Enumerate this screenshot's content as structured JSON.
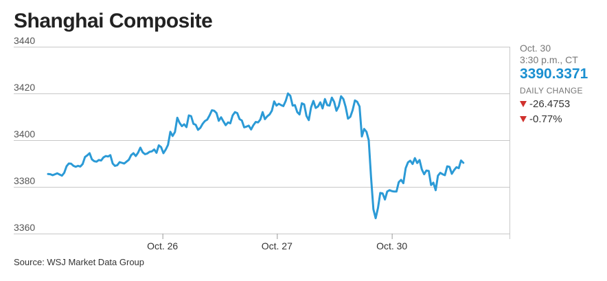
{
  "title": "Shanghai Composite",
  "side": {
    "date": "Oct. 30",
    "time": "3:30 p.m., CT",
    "price": "3390.3371",
    "change_label": "DAILY CHANGE",
    "change_abs": "-26.4753",
    "change_pct": "-0.77%",
    "down_icon": "down-triangle-icon",
    "down_color": "#d0312d"
  },
  "source": "Source: WSJ Market Data Group",
  "chart_data": {
    "type": "line",
    "title": "Shanghai Composite",
    "ylim": [
      3360,
      3440
    ],
    "yticks": [
      3440,
      3420,
      3400,
      3380,
      3360
    ],
    "xlim": [
      0,
      100
    ],
    "xticks": [
      {
        "label": "Oct. 26",
        "x": 24.8
      },
      {
        "label": "Oct. 27",
        "x": 49.6
      },
      {
        "label": "Oct. 30",
        "x": 74.5
      }
    ],
    "grid": true,
    "color": "#2b9ad6",
    "series": [
      {
        "values": [
          [
            0,
            3385.5
          ],
          [
            0.5,
            3385.4
          ],
          [
            1,
            3385.0
          ],
          [
            1.5,
            3385.4
          ],
          [
            2,
            3385.8
          ],
          [
            2.5,
            3385.3
          ],
          [
            3,
            3384.8
          ],
          [
            3.5,
            3386.0
          ],
          [
            4,
            3388.8
          ],
          [
            4.5,
            3390.0
          ],
          [
            5,
            3389.9
          ],
          [
            5.5,
            3389.0
          ],
          [
            6,
            3388.6
          ],
          [
            6.5,
            3389.0
          ],
          [
            7,
            3388.7
          ],
          [
            7.5,
            3389.8
          ],
          [
            8,
            3392.8
          ],
          [
            8.5,
            3393.5
          ],
          [
            9,
            3394.4
          ],
          [
            9.5,
            3391.8
          ],
          [
            10,
            3391.0
          ],
          [
            10.5,
            3390.8
          ],
          [
            11,
            3391.5
          ],
          [
            11.5,
            3391.3
          ],
          [
            12,
            3392.6
          ],
          [
            12.5,
            3393.2
          ],
          [
            13,
            3393.0
          ],
          [
            13.5,
            3393.6
          ],
          [
            14,
            3390.0
          ],
          [
            14.5,
            3389.0
          ],
          [
            15,
            3389.3
          ],
          [
            15.5,
            3390.6
          ],
          [
            16,
            3390.3
          ],
          [
            16.5,
            3390.0
          ],
          [
            17,
            3390.8
          ],
          [
            17.5,
            3391.6
          ],
          [
            18,
            3393.6
          ],
          [
            18.5,
            3394.4
          ],
          [
            19,
            3393.2
          ],
          [
            19.5,
            3394.6
          ],
          [
            20,
            3396.8
          ],
          [
            20.5,
            3394.8
          ],
          [
            21,
            3394.0
          ],
          [
            21.5,
            3394.3
          ],
          [
            22,
            3395.0
          ],
          [
            22.5,
            3395.2
          ],
          [
            23,
            3396.0
          ],
          [
            23.5,
            3394.6
          ],
          [
            24,
            3397.8
          ],
          [
            24.5,
            3397.0
          ],
          [
            25,
            3394.4
          ],
          [
            25.5,
            3396.0
          ],
          [
            26,
            3398.0
          ],
          [
            26.5,
            3403.6
          ],
          [
            27,
            3401.8
          ],
          [
            27.5,
            3403.5
          ],
          [
            28,
            3409.6
          ],
          [
            28.5,
            3407.4
          ],
          [
            29,
            3406.0
          ],
          [
            29.5,
            3406.8
          ],
          [
            30,
            3405.6
          ],
          [
            30.5,
            3410.6
          ],
          [
            31,
            3410.3
          ],
          [
            31.5,
            3407.0
          ],
          [
            32,
            3406.6
          ],
          [
            32.5,
            3404.4
          ],
          [
            33,
            3405.3
          ],
          [
            33.5,
            3407.0
          ],
          [
            34,
            3408.2
          ],
          [
            34.5,
            3408.8
          ],
          [
            35,
            3410.6
          ],
          [
            35.5,
            3412.8
          ],
          [
            36,
            3412.6
          ],
          [
            36.5,
            3411.6
          ],
          [
            37,
            3408.3
          ],
          [
            37.5,
            3409.8
          ],
          [
            38,
            3408.0
          ],
          [
            38.5,
            3406.4
          ],
          [
            39,
            3407.6
          ],
          [
            39.5,
            3407.2
          ],
          [
            40,
            3410.6
          ],
          [
            40.5,
            3412.0
          ],
          [
            41,
            3411.6
          ],
          [
            41.5,
            3409.0
          ],
          [
            42,
            3408.4
          ],
          [
            42.5,
            3405.5
          ],
          [
            43,
            3405.8
          ],
          [
            43.5,
            3406.2
          ],
          [
            44,
            3404.6
          ],
          [
            44.5,
            3406.4
          ],
          [
            45,
            3407.8
          ],
          [
            45.5,
            3407.6
          ],
          [
            46,
            3408.8
          ],
          [
            46.5,
            3412.0
          ],
          [
            47,
            3409.0
          ],
          [
            47.5,
            3410.2
          ],
          [
            48,
            3411.0
          ],
          [
            48.5,
            3412.6
          ],
          [
            49,
            3416.6
          ],
          [
            49.5,
            3414.8
          ],
          [
            50,
            3415.6
          ],
          [
            50.5,
            3415.0
          ],
          [
            51,
            3414.6
          ],
          [
            51.5,
            3416.8
          ],
          [
            52,
            3420.0
          ],
          [
            52.5,
            3419.0
          ],
          [
            53,
            3414.8
          ],
          [
            53.5,
            3415.0
          ],
          [
            54,
            3412.0
          ],
          [
            54.5,
            3411.0
          ],
          [
            55,
            3415.8
          ],
          [
            55.5,
            3415.3
          ],
          [
            56,
            3410.4
          ],
          [
            56.5,
            3408.6
          ],
          [
            57,
            3414.0
          ],
          [
            57.5,
            3416.8
          ],
          [
            58,
            3413.8
          ],
          [
            58.5,
            3414.4
          ],
          [
            59,
            3416.2
          ],
          [
            59.5,
            3413.6
          ],
          [
            60,
            3417.6
          ],
          [
            60.5,
            3415.0
          ],
          [
            61,
            3414.8
          ],
          [
            61.5,
            3418.2
          ],
          [
            62,
            3416.4
          ],
          [
            62.5,
            3412.6
          ],
          [
            63,
            3414.6
          ],
          [
            63.5,
            3418.8
          ],
          [
            64,
            3417.6
          ],
          [
            64.5,
            3414.2
          ],
          [
            65,
            3409.2
          ],
          [
            65.5,
            3410.0
          ],
          [
            66,
            3412.8
          ],
          [
            66.5,
            3417.0
          ],
          [
            67,
            3416.4
          ],
          [
            67.5,
            3414.4
          ],
          [
            68,
            3401.6
          ],
          [
            68.5,
            3404.8
          ],
          [
            69,
            3403.6
          ],
          [
            69.5,
            3400.0
          ],
          [
            70,
            3384.0
          ],
          [
            70.5,
            3370.4
          ],
          [
            71,
            3366.6
          ],
          [
            71.5,
            3371.0
          ],
          [
            72,
            3377.4
          ],
          [
            72.5,
            3377.2
          ],
          [
            73,
            3374.6
          ],
          [
            73.5,
            3378.0
          ],
          [
            74,
            3378.6
          ],
          [
            74.5,
            3378.2
          ],
          [
            75,
            3378.0
          ],
          [
            75.5,
            3378.0
          ],
          [
            76,
            3382.0
          ],
          [
            76.5,
            3383.0
          ],
          [
            77,
            3381.6
          ],
          [
            77.5,
            3388.0
          ],
          [
            78,
            3390.5
          ],
          [
            78.5,
            3391.2
          ],
          [
            79,
            3389.8
          ],
          [
            79.5,
            3392.3
          ],
          [
            80,
            3390.2
          ],
          [
            80.5,
            3391.5
          ],
          [
            81,
            3387.5
          ],
          [
            81.5,
            3385.4
          ],
          [
            82,
            3387.0
          ],
          [
            82.5,
            3386.8
          ],
          [
            83,
            3380.8
          ],
          [
            83.5,
            3381.8
          ],
          [
            84,
            3378.6
          ],
          [
            84.5,
            3384.8
          ],
          [
            85,
            3386.0
          ],
          [
            85.5,
            3385.4
          ],
          [
            86,
            3385.0
          ],
          [
            86.5,
            3388.8
          ],
          [
            87,
            3388.6
          ],
          [
            87.5,
            3385.6
          ],
          [
            88,
            3387.2
          ],
          [
            88.5,
            3388.4
          ],
          [
            89,
            3388.0
          ],
          [
            89.5,
            3391.3
          ],
          [
            90,
            3390.3
          ]
        ]
      }
    ]
  }
}
